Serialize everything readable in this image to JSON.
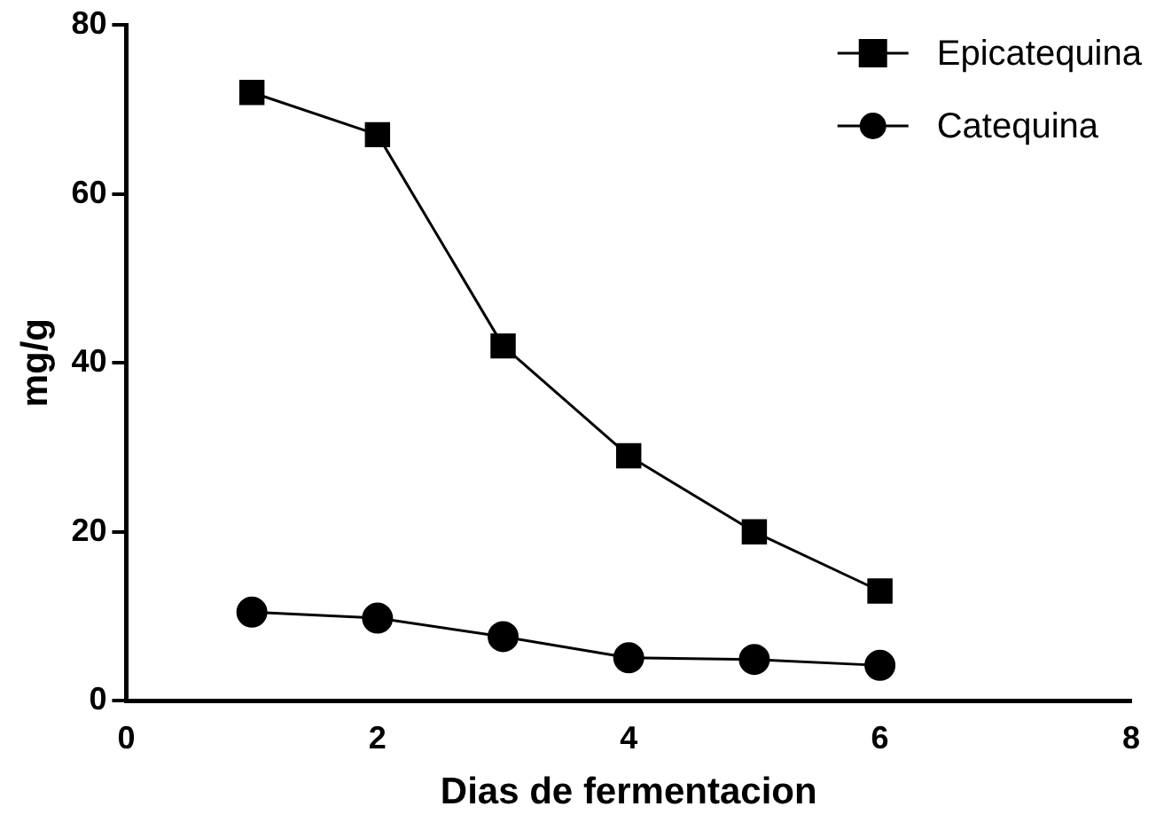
{
  "chart_data": {
    "type": "line",
    "xlabel": "Dias de fermentacion",
    "ylabel": "mg/g",
    "x": [
      1,
      2,
      3,
      4,
      5,
      6
    ],
    "series": [
      {
        "name": "Epicatequina",
        "color": "#000000",
        "marker": "square",
        "values": [
          72,
          67,
          42,
          29,
          20,
          13
        ]
      },
      {
        "name": "Catequina",
        "color": "#000000",
        "marker": "circle",
        "values": [
          10.5,
          9.8,
          7.6,
          5.1,
          4.9,
          4.2
        ]
      }
    ],
    "xlim": [
      0,
      8
    ],
    "xticks": [
      0,
      2,
      4,
      6,
      8
    ],
    "ylim": [
      0,
      80
    ],
    "yticks": [
      0,
      20,
      40,
      60,
      80
    ],
    "grid": false,
    "legend": "top right",
    "line_style": "solid"
  }
}
